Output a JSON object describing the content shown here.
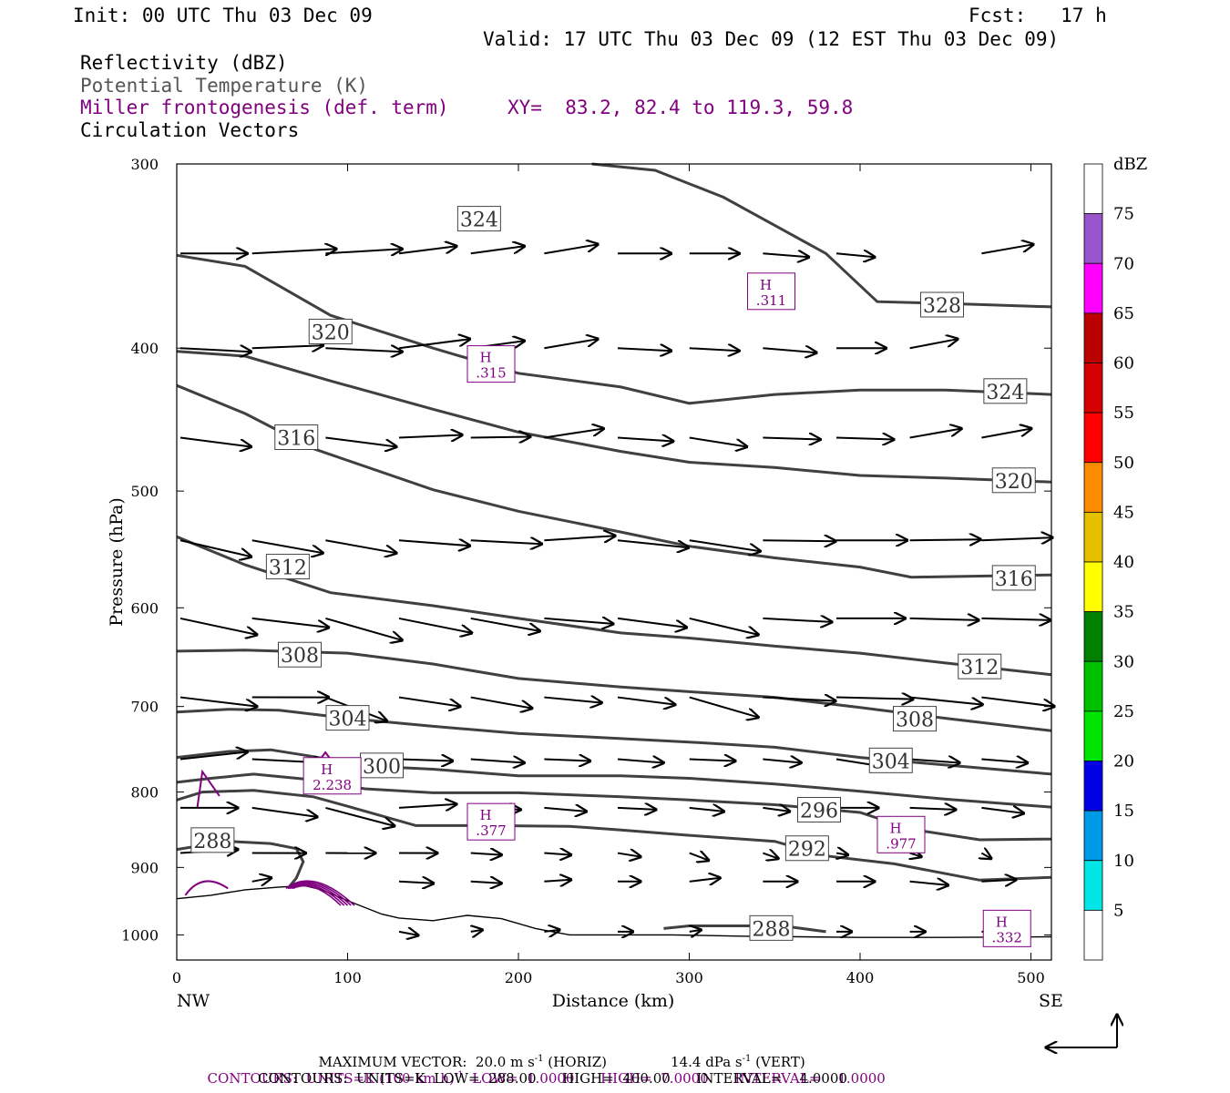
{
  "header": {
    "init": "Init: 00 UTC Thu 03 Dec 09",
    "fcst": "Fcst:   17 h",
    "valid": "Valid: 17 UTC Thu 03 Dec 09 (12 EST Thu 03 Dec 09)",
    "field1": "Reflectivity (dBZ)",
    "field2": "Potential Temperature (K)",
    "field3": "Miller frontogenesis (def. term)",
    "xy": "XY=  83.2, 82.4 to 119.3, 59.8",
    "field4": "Circulation Vectors"
  },
  "chart_data": {
    "type": "line",
    "title": "",
    "xlabel": "Distance (km)",
    "ylabel": "Pressure (hPa)",
    "xlim": [
      0,
      512
    ],
    "ylim": [
      1040,
      300
    ],
    "y_scale": "log",
    "x_ticks": [
      0,
      100,
      200,
      300,
      400,
      500
    ],
    "y_ticks": [
      300,
      400,
      500,
      600,
      700,
      800,
      900,
      1000
    ],
    "x_end_labels": {
      "left": "NW",
      "right": "SE"
    },
    "theta_contour_labels": [
      {
        "text": "324",
        "x": 177,
        "p": 327
      },
      {
        "text": "320",
        "x": 90,
        "p": 390
      },
      {
        "text": "316",
        "x": 70,
        "p": 460
      },
      {
        "text": "312",
        "x": 65,
        "p": 563
      },
      {
        "text": "308",
        "x": 72,
        "p": 646
      },
      {
        "text": "304",
        "x": 100,
        "p": 713
      },
      {
        "text": "300",
        "x": 120,
        "p": 768
      },
      {
        "text": "288",
        "x": 21,
        "p": 863
      },
      {
        "text": "328",
        "x": 448,
        "p": 374
      },
      {
        "text": "324",
        "x": 485,
        "p": 428
      },
      {
        "text": "320",
        "x": 490,
        "p": 492
      },
      {
        "text": "316",
        "x": 490,
        "p": 573
      },
      {
        "text": "312",
        "x": 470,
        "p": 658
      },
      {
        "text": "308",
        "x": 432,
        "p": 714
      },
      {
        "text": "304",
        "x": 418,
        "p": 762
      },
      {
        "text": "296",
        "x": 376,
        "p": 823
      },
      {
        "text": "292",
        "x": 369,
        "p": 874
      },
      {
        "text": "288",
        "x": 348,
        "p": 990
      }
    ],
    "theta_contours": [
      {
        "theta": 328,
        "points": [
          [
            243,
            300
          ],
          [
            280,
            303
          ],
          [
            320,
            316
          ],
          [
            380,
            345
          ],
          [
            410,
            372
          ],
          [
            450,
            373
          ],
          [
            512,
            375
          ]
        ]
      },
      {
        "theta": 324,
        "points": [
          [
            0,
            346
          ],
          [
            40,
            352
          ],
          [
            90,
            380
          ],
          [
            150,
            400
          ],
          [
            200,
            416
          ],
          [
            260,
            425
          ],
          [
            300,
            436
          ],
          [
            350,
            430
          ],
          [
            400,
            427
          ],
          [
            450,
            427
          ],
          [
            512,
            430
          ]
        ]
      },
      {
        "theta": 320,
        "points": [
          [
            0,
            402
          ],
          [
            40,
            405
          ],
          [
            90,
            421
          ],
          [
            150,
            440
          ],
          [
            200,
            456
          ],
          [
            260,
            470
          ],
          [
            300,
            478
          ],
          [
            350,
            482
          ],
          [
            400,
            488
          ],
          [
            450,
            490
          ],
          [
            512,
            493
          ]
        ]
      },
      {
        "theta": 316,
        "points": [
          [
            0,
            424
          ],
          [
            40,
            443
          ],
          [
            80,
            468
          ],
          [
            150,
            499
          ],
          [
            200,
            516
          ],
          [
            260,
            533
          ],
          [
            300,
            545
          ],
          [
            350,
            555
          ],
          [
            400,
            563
          ],
          [
            430,
            572
          ],
          [
            470,
            571
          ],
          [
            512,
            570
          ]
        ]
      },
      {
        "theta": 312,
        "points": [
          [
            0,
            537
          ],
          [
            40,
            561
          ],
          [
            90,
            586
          ],
          [
            150,
            598
          ],
          [
            200,
            610
          ],
          [
            260,
            624
          ],
          [
            300,
            629
          ],
          [
            350,
            637
          ],
          [
            400,
            644
          ],
          [
            450,
            654
          ],
          [
            512,
            666
          ]
        ]
      },
      {
        "theta": 308,
        "points": [
          [
            0,
            642
          ],
          [
            40,
            641
          ],
          [
            100,
            644
          ],
          [
            150,
            655
          ],
          [
            200,
            670
          ],
          [
            260,
            679
          ],
          [
            300,
            684
          ],
          [
            350,
            690
          ],
          [
            400,
            701
          ],
          [
            450,
            713
          ],
          [
            512,
            727
          ]
        ]
      },
      {
        "theta": 304,
        "points": [
          [
            0,
            706
          ],
          [
            30,
            703
          ],
          [
            60,
            704
          ],
          [
            100,
            713
          ],
          [
            150,
            722
          ],
          [
            200,
            730
          ],
          [
            260,
            736
          ],
          [
            300,
            740
          ],
          [
            350,
            746
          ],
          [
            400,
            758
          ],
          [
            450,
            767
          ],
          [
            512,
            778
          ]
        ]
      },
      {
        "theta": 300,
        "points": [
          [
            0,
            758
          ],
          [
            30,
            751
          ],
          [
            55,
            749
          ],
          [
            80,
            757
          ],
          [
            110,
            768
          ],
          [
            150,
            772
          ],
          [
            200,
            780
          ],
          [
            260,
            780
          ],
          [
            300,
            783
          ],
          [
            350,
            790
          ],
          [
            400,
            799
          ],
          [
            450,
            809
          ],
          [
            512,
            819
          ]
        ]
      },
      {
        "theta": 296,
        "points": [
          [
            0,
            788
          ],
          [
            20,
            783
          ],
          [
            45,
            778
          ],
          [
            80,
            785
          ],
          [
            110,
            796
          ],
          [
            150,
            801
          ],
          [
            200,
            801
          ],
          [
            260,
            806
          ],
          [
            300,
            810
          ],
          [
            350,
            816
          ],
          [
            400,
            826
          ],
          [
            430,
            848
          ],
          [
            470,
            862
          ],
          [
            512,
            861
          ]
        ]
      },
      {
        "theta": 292,
        "points": [
          [
            0,
            810
          ],
          [
            15,
            800
          ],
          [
            45,
            798
          ],
          [
            80,
            806
          ],
          [
            100,
            818
          ],
          [
            140,
            843
          ],
          [
            180,
            843
          ],
          [
            230,
            844
          ],
          [
            260,
            849
          ],
          [
            300,
            856
          ],
          [
            350,
            864
          ],
          [
            380,
            884
          ],
          [
            420,
            895
          ],
          [
            470,
            918
          ],
          [
            512,
            914
          ]
        ]
      },
      {
        "theta": 288,
        "points": [
          [
            0,
            875
          ],
          [
            30,
            864
          ],
          [
            55,
            867
          ],
          [
            70,
            874
          ],
          [
            74,
            892
          ],
          [
            70,
            915
          ],
          [
            65,
            930
          ]
        ]
      },
      {
        "theta": 288,
        "points": [
          [
            285,
            990
          ],
          [
            300,
            986
          ],
          [
            340,
            986
          ],
          [
            360,
            988
          ],
          [
            380,
            995
          ]
        ]
      }
    ],
    "high_markers": [
      {
        "label": "H",
        "value": ".311",
        "x": 348,
        "p": 366
      },
      {
        "label": "H",
        "value": ".315",
        "x": 184,
        "p": 410
      },
      {
        "label": "H",
        "value": "2.238",
        "x": 91,
        "p": 780
      },
      {
        "label": "H",
        "value": ".377",
        "x": 184,
        "p": 838
      },
      {
        "label": "H",
        "value": ".977",
        "x": 424,
        "p": 855
      },
      {
        "label": "H",
        "value": ".332",
        "x": 486,
        "p": 990
      }
    ],
    "terrain": [
      [
        0,
        945
      ],
      [
        20,
        940
      ],
      [
        40,
        932
      ],
      [
        60,
        928
      ],
      [
        75,
        926
      ],
      [
        85,
        932
      ],
      [
        100,
        948
      ],
      [
        120,
        968
      ],
      [
        130,
        974
      ],
      [
        150,
        978
      ],
      [
        170,
        970
      ],
      [
        190,
        975
      ],
      [
        210,
        990
      ],
      [
        230,
        1000
      ],
      [
        260,
        1000
      ],
      [
        290,
        1000
      ],
      [
        330,
        1002
      ],
      [
        400,
        1004
      ],
      [
        450,
        1004
      ],
      [
        512,
        1003
      ]
    ],
    "vector_rows": [
      {
        "p": 345,
        "x": [
          0,
          42,
          85,
          128,
          170,
          213,
          256,
          298,
          341,
          384,
          427,
          469
        ],
        "u": [
          35,
          44,
          40,
          30,
          28,
          28,
          28,
          26,
          24,
          20,
          0,
          27
        ],
        "w": [
          0,
          5,
          5,
          8,
          8,
          10,
          0,
          0,
          -4,
          -4,
          0,
          10
        ]
      },
      {
        "p": 400,
        "x": [
          0,
          42,
          85,
          128,
          170,
          213,
          256,
          298,
          341,
          384,
          427,
          469
        ],
        "u": [
          37,
          37,
          40,
          37,
          28,
          28,
          28,
          26,
          28,
          26,
          25,
          0
        ],
        "w": [
          -4,
          3,
          -4,
          10,
          8,
          10,
          -3,
          -3,
          -5,
          0,
          10,
          0
        ]
      },
      {
        "p": 460,
        "x": [
          0,
          85,
          128,
          170,
          213,
          256,
          298,
          341,
          384,
          427,
          469
        ],
        "u": [
          37,
          37,
          33,
          31,
          31,
          29,
          30,
          30,
          30,
          27,
          26
        ],
        "w": [
          -10,
          -10,
          3,
          1,
          10,
          -4,
          -10,
          -2,
          -2,
          10,
          10
        ]
      },
      {
        "p": 540,
        "x": [
          0,
          42,
          85,
          128,
          170,
          213,
          256,
          298,
          341,
          384,
          427,
          469
        ],
        "u": [
          37,
          37,
          37,
          37,
          37,
          37,
          37,
          37,
          38,
          37,
          37,
          37
        ],
        "w": [
          -18,
          -14,
          -14,
          -6,
          -4,
          5,
          -8,
          -12,
          -1,
          0,
          1,
          3
        ]
      },
      {
        "p": 610,
        "x": [
          0,
          42,
          85,
          128,
          170,
          213,
          256,
          298,
          341,
          384,
          427,
          469
        ],
        "u": [
          40,
          40,
          40,
          38,
          36,
          36,
          36,
          36,
          36,
          36,
          36,
          36
        ],
        "w": [
          -18,
          -10,
          -24,
          -16,
          -14,
          -6,
          -10,
          -18,
          -4,
          0,
          -2,
          -2
        ]
      },
      {
        "p": 690,
        "x": [
          0,
          42,
          85,
          128,
          170,
          213,
          256,
          298,
          341,
          384,
          427,
          469
        ],
        "u": [
          40,
          40,
          32,
          32,
          32,
          30,
          30,
          36,
          38,
          40,
          38,
          38
        ],
        "w": [
          -10,
          0,
          -26,
          -10,
          -12,
          -6,
          -8,
          -22,
          -4,
          -2,
          -8,
          -10
        ]
      },
      {
        "p": 760,
        "x": [
          0,
          42,
          85,
          128,
          170,
          213,
          256,
          298,
          341,
          384,
          427,
          469
        ],
        "u": [
          35,
          38,
          30,
          28,
          28,
          24,
          24,
          24,
          20,
          24,
          26,
          24
        ],
        "w": [
          8,
          -4,
          -12,
          -2,
          -4,
          -2,
          -4,
          -2,
          -4,
          -8,
          -4,
          -4
        ]
      },
      {
        "p": 820,
        "x": [
          0,
          42,
          85,
          128,
          170,
          213,
          256,
          298,
          341,
          384,
          427,
          469
        ],
        "u": [
          30,
          34,
          36,
          30,
          26,
          22,
          20,
          18,
          14,
          22,
          24,
          22
        ],
        "w": [
          0,
          -10,
          -20,
          4,
          -2,
          -4,
          -2,
          -4,
          -4,
          0,
          -2,
          -6
        ]
      },
      {
        "p": 880,
        "x": [
          0,
          42,
          85,
          128,
          170,
          213,
          256,
          298,
          341,
          384,
          427,
          469
        ],
        "u": [
          30,
          28,
          26,
          20,
          16,
          14,
          12,
          10,
          8,
          6,
          6,
          5
        ],
        "w": [
          4,
          0,
          0,
          0,
          -2,
          -2,
          -4,
          -8,
          -6,
          -2,
          -4,
          -6
        ]
      },
      {
        "p": 920,
        "x": [
          42,
          128,
          170,
          213,
          256,
          298,
          341,
          384,
          427,
          469
        ],
        "u": [
          10,
          18,
          16,
          14,
          12,
          16,
          18,
          20,
          20,
          18
        ],
        "w": [
          4,
          -2,
          -2,
          2,
          0,
          4,
          0,
          0,
          -4,
          2
        ]
      },
      {
        "p": 995,
        "x": [
          128,
          170,
          213,
          256,
          298,
          341,
          384,
          427,
          469
        ],
        "u": [
          10,
          6,
          8,
          8,
          6,
          10,
          8,
          8,
          8
        ],
        "w": [
          -4,
          2,
          2,
          0,
          2,
          0,
          0,
          0,
          0
        ]
      }
    ],
    "colorbar": {
      "unit": "dBZ",
      "levels": [
        5,
        10,
        15,
        20,
        25,
        30,
        35,
        40,
        45,
        50,
        55,
        60,
        65,
        70,
        75
      ],
      "colors": [
        "#ffffff",
        "#00e5e5",
        "#0099e5",
        "#0000e5",
        "#00e500",
        "#00c000",
        "#008000",
        "#ffff00",
        "#e5c000",
        "#ff8c00",
        "#ff0000",
        "#d40000",
        "#bb0000",
        "#ff00ff",
        "#9955cc",
        "#ffffff"
      ]
    },
    "theta_contour_color": "#404040",
    "frontogenesis_color": "#800080"
  },
  "footer": {
    "max_vector": "MAXIMUM VECTOR:  20.0 m s",
    "max_vector_sup": "-1",
    "horiz": " (HORIZ)",
    "vert": "14.4 dPa s",
    "vert_sup": "-1",
    "vert_tail": " (VERT)",
    "contours1": "CONTOURS:  UNITS=K (100 km h)",
    "contours1_sup": "-1",
    "contours1_tail": "  LOW=  1.0000      HIGH=  7.0000      INTERVAL=    1.0000",
    "contours2": "CONTOURS:  UNITS=K  LOW=  288.00      HIGH=  400.00      INTERVAL=    4.0000"
  }
}
